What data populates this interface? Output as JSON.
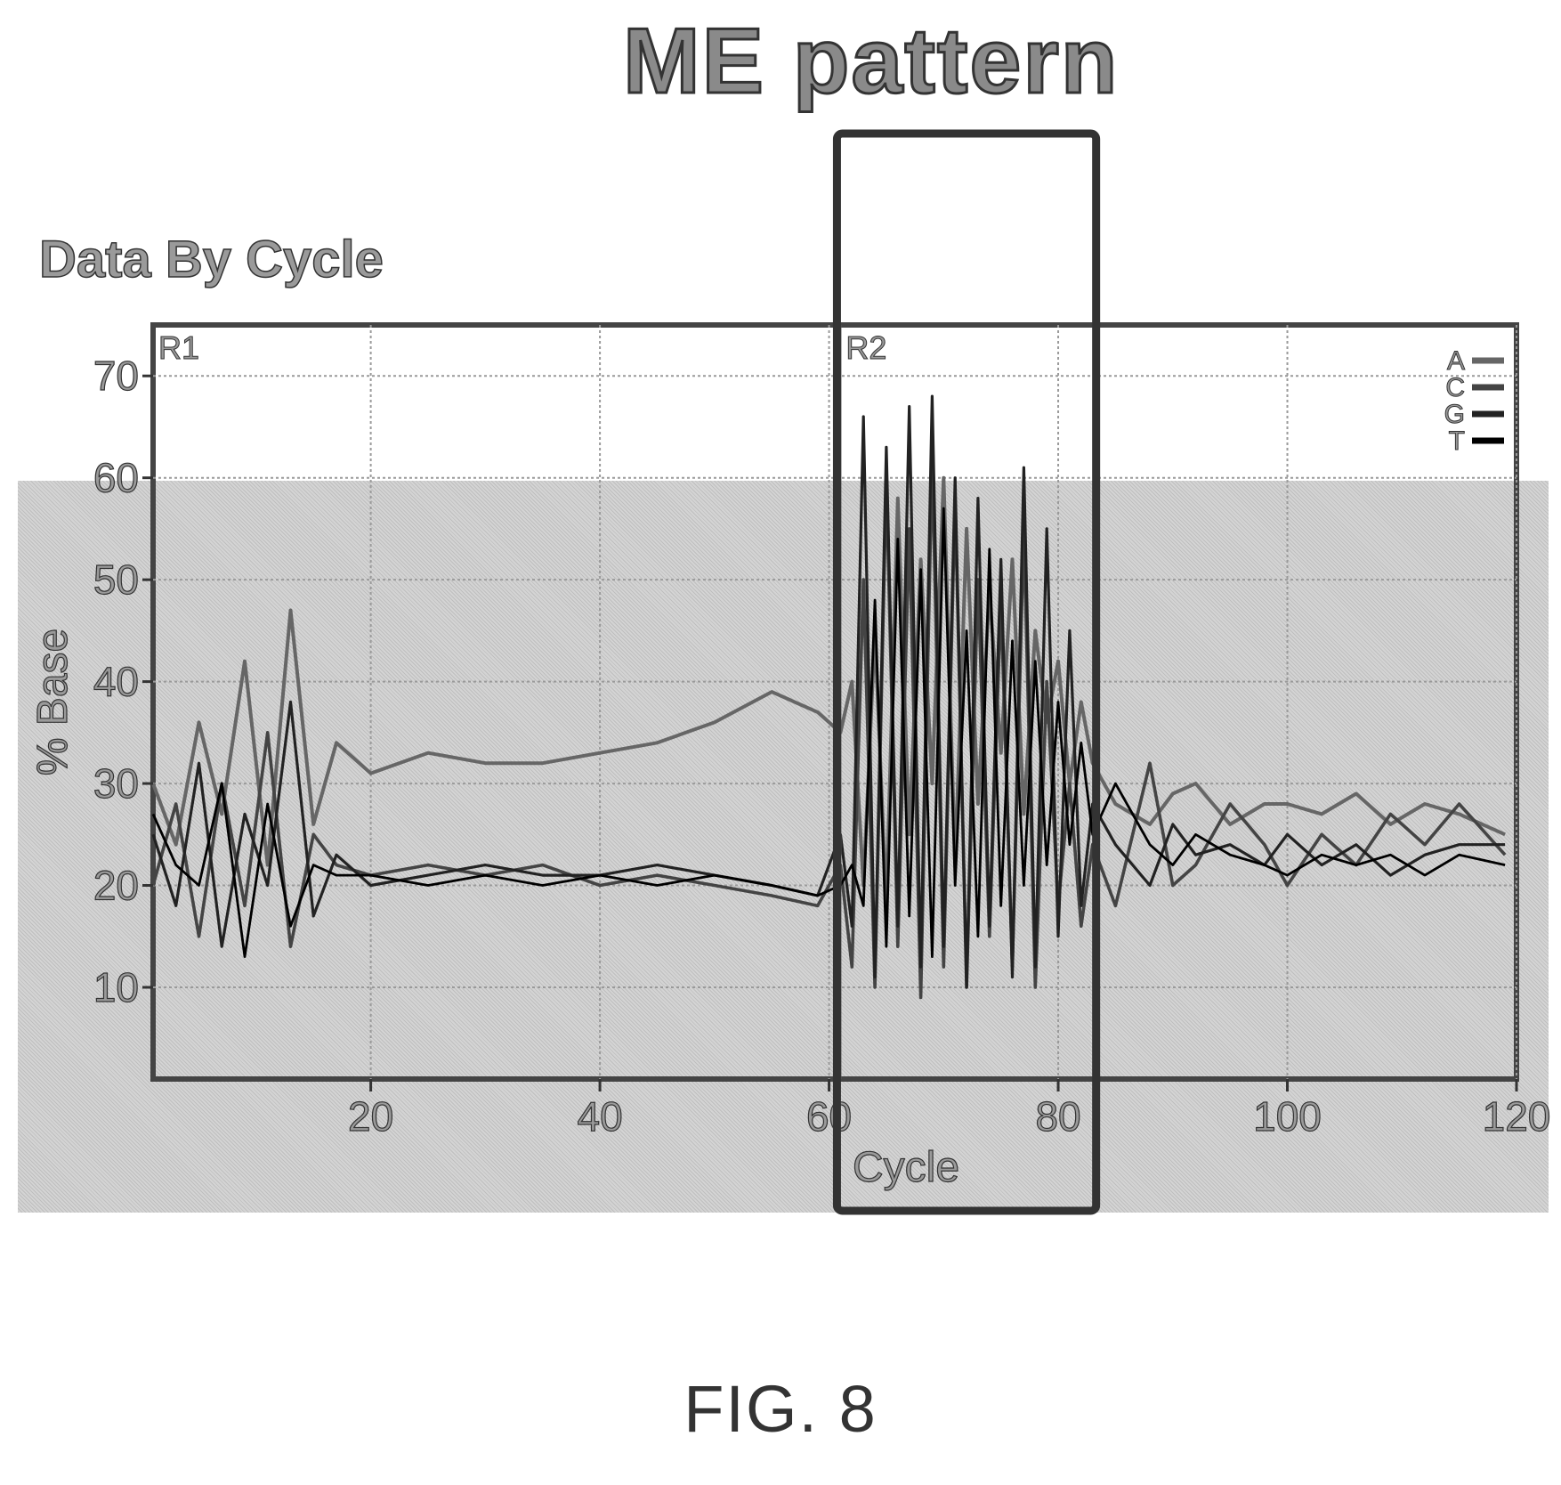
{
  "header": {
    "title": "ME pattern"
  },
  "figure": {
    "caption": "FIG. 8"
  },
  "chart_data": {
    "type": "line",
    "title": "Data By Cycle",
    "xlabel": "Cycle",
    "ylabel": "% Base",
    "xlim": [
      1,
      120
    ],
    "ylim": [
      1,
      75
    ],
    "x_ticks": [
      20,
      40,
      60,
      80,
      100,
      120
    ],
    "y_ticks": [
      10,
      20,
      30,
      40,
      50,
      60,
      70
    ],
    "grid": true,
    "legend": {
      "position": "top-right",
      "entries": [
        "A",
        "C",
        "G",
        "T"
      ]
    },
    "regions": [
      {
        "label": "R1",
        "start": 1
      },
      {
        "label": "R2",
        "start": 61
      }
    ],
    "highlight_box": {
      "x_start": 61,
      "x_end": 83,
      "note": "ME pattern"
    },
    "series": [
      {
        "name": "A",
        "color": "#666666",
        "x": [
          1,
          3,
          5,
          7,
          9,
          11,
          13,
          15,
          17,
          20,
          25,
          30,
          35,
          40,
          45,
          50,
          55,
          59,
          61,
          62,
          63,
          64,
          65,
          66,
          67,
          68,
          69,
          70,
          71,
          72,
          73,
          74,
          75,
          76,
          77,
          78,
          79,
          80,
          81,
          82,
          83,
          85,
          88,
          90,
          92,
          95,
          98,
          100,
          103,
          106,
          109,
          112,
          115,
          119
        ],
        "values": [
          30,
          24,
          36,
          27,
          42,
          22,
          47,
          26,
          34,
          31,
          33,
          32,
          32,
          33,
          34,
          36,
          39,
          37,
          35,
          40,
          20,
          45,
          18,
          58,
          25,
          52,
          30,
          60,
          22,
          55,
          28,
          49,
          33,
          52,
          27,
          45,
          36,
          42,
          30,
          38,
          32,
          28,
          26,
          29,
          30,
          26,
          28,
          28,
          27,
          29,
          26,
          28,
          27,
          25
        ]
      },
      {
        "name": "C",
        "color": "#444444",
        "x": [
          1,
          3,
          5,
          7,
          9,
          11,
          13,
          15,
          17,
          20,
          25,
          30,
          35,
          40,
          45,
          50,
          55,
          59,
          61,
          62,
          63,
          64,
          65,
          66,
          67,
          68,
          69,
          70,
          71,
          72,
          73,
          74,
          75,
          76,
          77,
          78,
          79,
          80,
          81,
          82,
          83,
          85,
          88,
          90,
          92,
          95,
          98,
          100,
          103,
          106,
          109,
          112,
          115,
          119
        ],
        "values": [
          20,
          28,
          15,
          30,
          18,
          35,
          14,
          25,
          22,
          21,
          22,
          21,
          22,
          20,
          21,
          20,
          19,
          18,
          22,
          12,
          50,
          10,
          60,
          14,
          55,
          9,
          62,
          12,
          58,
          10,
          50,
          15,
          48,
          12,
          55,
          10,
          40,
          18,
          30,
          16,
          24,
          18,
          32,
          20,
          22,
          28,
          24,
          20,
          25,
          22,
          27,
          24,
          28,
          23
        ]
      },
      {
        "name": "G",
        "color": "#222222",
        "x": [
          1,
          3,
          5,
          7,
          9,
          11,
          13,
          15,
          17,
          20,
          25,
          30,
          35,
          40,
          45,
          50,
          55,
          59,
          61,
          62,
          63,
          64,
          65,
          66,
          67,
          68,
          69,
          70,
          71,
          72,
          73,
          74,
          75,
          76,
          77,
          78,
          79,
          80,
          81,
          82,
          83,
          85,
          88,
          90,
          92,
          95,
          98,
          100,
          103,
          106,
          109,
          112,
          115,
          119
        ],
        "values": [
          25,
          18,
          32,
          14,
          27,
          20,
          38,
          17,
          23,
          20,
          21,
          22,
          21,
          21,
          22,
          21,
          20,
          19,
          25,
          16,
          66,
          11,
          63,
          16,
          67,
          12,
          68,
          14,
          60,
          10,
          58,
          16,
          52,
          11,
          61,
          12,
          55,
          15,
          45,
          18,
          28,
          24,
          20,
          26,
          23,
          24,
          22,
          25,
          22,
          24,
          21,
          23,
          24,
          24
        ]
      },
      {
        "name": "T",
        "color": "#000000",
        "x": [
          1,
          3,
          5,
          7,
          9,
          11,
          13,
          15,
          17,
          20,
          25,
          30,
          35,
          40,
          45,
          50,
          55,
          59,
          61,
          62,
          63,
          64,
          65,
          66,
          67,
          68,
          69,
          70,
          71,
          72,
          73,
          74,
          75,
          76,
          77,
          78,
          79,
          80,
          81,
          82,
          83,
          85,
          88,
          90,
          92,
          95,
          98,
          100,
          103,
          106,
          109,
          112,
          115,
          119
        ],
        "values": [
          27,
          22,
          20,
          30,
          13,
          28,
          16,
          22,
          21,
          21,
          20,
          21,
          20,
          21,
          20,
          21,
          20,
          19,
          20,
          22,
          18,
          48,
          14,
          54,
          17,
          51,
          13,
          57,
          20,
          45,
          15,
          53,
          18,
          44,
          20,
          42,
          22,
          38,
          24,
          34,
          25,
          30,
          24,
          22,
          25,
          23,
          22,
          21,
          23,
          22,
          23,
          21,
          23,
          22
        ]
      }
    ]
  }
}
